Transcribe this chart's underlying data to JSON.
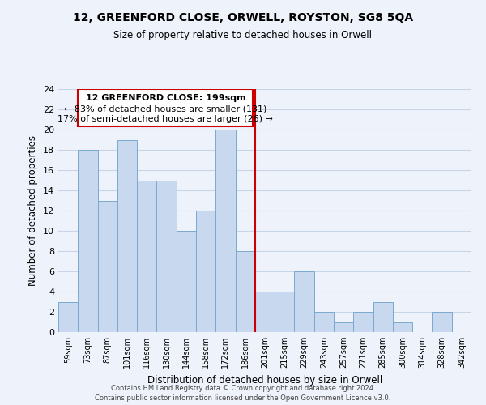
{
  "title": "12, GREENFORD CLOSE, ORWELL, ROYSTON, SG8 5QA",
  "subtitle": "Size of property relative to detached houses in Orwell",
  "xlabel": "Distribution of detached houses by size in Orwell",
  "ylabel": "Number of detached properties",
  "bins": [
    "59sqm",
    "73sqm",
    "87sqm",
    "101sqm",
    "116sqm",
    "130sqm",
    "144sqm",
    "158sqm",
    "172sqm",
    "186sqm",
    "201sqm",
    "215sqm",
    "229sqm",
    "243sqm",
    "257sqm",
    "271sqm",
    "285sqm",
    "300sqm",
    "314sqm",
    "328sqm",
    "342sqm"
  ],
  "values": [
    3,
    18,
    13,
    19,
    15,
    15,
    10,
    12,
    20,
    8,
    4,
    4,
    6,
    2,
    1,
    2,
    3,
    1,
    0,
    2,
    0
  ],
  "bar_color": "#c8d8ee",
  "bar_edge_color": "#7aaace",
  "grid_color": "#c8d4e8",
  "property_line_x": 10,
  "property_line_color": "#cc0000",
  "annotation_title": "12 GREENFORD CLOSE: 199sqm",
  "annotation_line1": "← 83% of detached houses are smaller (131)",
  "annotation_line2": "17% of semi-detached houses are larger (26) →",
  "annotation_box_facecolor": "#ffffff",
  "annotation_box_edgecolor": "#cc0000",
  "ylim": [
    0,
    24
  ],
  "yticks": [
    0,
    2,
    4,
    6,
    8,
    10,
    12,
    14,
    16,
    18,
    20,
    22,
    24
  ],
  "footer1": "Contains HM Land Registry data © Crown copyright and database right 2024.",
  "footer2": "Contains public sector information licensed under the Open Government Licence v3.0.",
  "background_color": "#eef2fa"
}
